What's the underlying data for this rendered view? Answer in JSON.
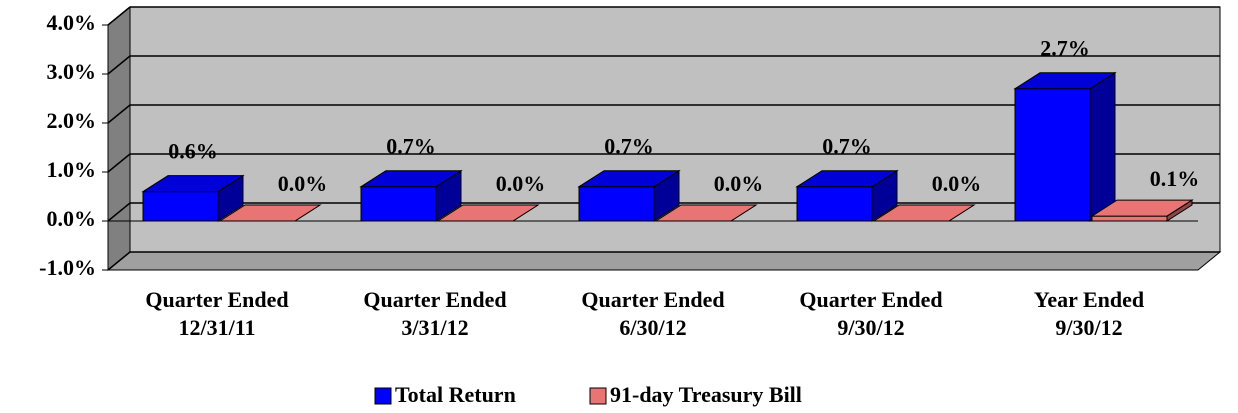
{
  "chart_data": {
    "type": "bar3d",
    "categories": [
      [
        "Quarter Ended",
        "12/31/11"
      ],
      [
        "Quarter Ended",
        "3/31/12"
      ],
      [
        "Quarter Ended",
        "6/30/12"
      ],
      [
        "Quarter Ended",
        "9/30/12"
      ],
      [
        "Year Ended",
        "9/30/12"
      ]
    ],
    "series": [
      {
        "name": "Total Return",
        "color": "#0000ff",
        "values": [
          0.6,
          0.7,
          0.7,
          0.7,
          2.7
        ],
        "value_labels": [
          "0.6%",
          "0.7%",
          "0.7%",
          "0.7%",
          "2.7%"
        ]
      },
      {
        "name": "91-day Treasury Bill",
        "color": "#e87474",
        "values": [
          0.0,
          0.0,
          0.0,
          0.0,
          0.1
        ],
        "value_labels": [
          "0.0%",
          "0.0%",
          "0.0%",
          "0.0%",
          "0.1%"
        ]
      }
    ],
    "ylim": [
      -1,
      4
    ],
    "yticks": [
      {
        "value": -1,
        "label": "-1.0%"
      },
      {
        "value": 0,
        "label": "0.0%"
      },
      {
        "value": 1,
        "label": "1.0%"
      },
      {
        "value": 2,
        "label": "2.0%"
      },
      {
        "value": 3,
        "label": "3.0%"
      },
      {
        "value": 4,
        "label": "4.0%"
      }
    ],
    "grid": true,
    "legend": "bottom"
  }
}
